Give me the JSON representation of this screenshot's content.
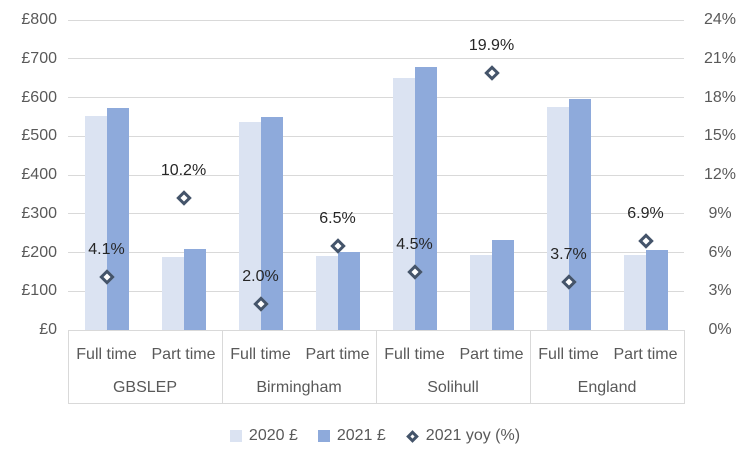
{
  "chart_data": {
    "type": "bar",
    "title": "",
    "groups": [
      "GBSLEP",
      "Birmingham",
      "Solihull",
      "England"
    ],
    "subcategories": [
      "Full time",
      "Part time"
    ],
    "series": [
      {
        "name": "2020 £",
        "values": [
          551,
          189,
          538,
          190,
          650,
          194,
          576,
          194
        ]
      },
      {
        "name": "2021 £",
        "values": [
          574,
          208,
          549,
          202,
          679,
          232,
          597,
          207
        ]
      }
    ],
    "marker_series": {
      "name": "2021 yoy (%)",
      "values": [
        4.1,
        10.2,
        2.0,
        6.5,
        4.5,
        19.9,
        3.7,
        6.9
      ],
      "labels": [
        "4.1%",
        "10.2%",
        "2.0%",
        "6.5%",
        "4.5%",
        "19.9%",
        "3.7%",
        "6.9%"
      ]
    },
    "left_axis": {
      "min": 0,
      "max": 800,
      "step": 100,
      "ticks": [
        "£0",
        "£100",
        "£200",
        "£300",
        "£400",
        "£500",
        "£600",
        "£700",
        "£800"
      ]
    },
    "right_axis": {
      "min": 0,
      "max": 24,
      "step": 3,
      "ticks": [
        "0%",
        "3%",
        "6%",
        "9%",
        "12%",
        "15%",
        "18%",
        "21%",
        "24%"
      ]
    },
    "grid": true,
    "legend_position": "bottom",
    "legend": [
      {
        "label": "2020 £",
        "swatch": "square-light"
      },
      {
        "label": "2021 £",
        "swatch": "square-dark"
      },
      {
        "label": "2021 yoy (%)",
        "swatch": "diamond"
      }
    ],
    "colors": {
      "bar_2020": "#dbe3f2",
      "bar_2021": "#8eaadb",
      "marker_border": "#44546a",
      "marker_fill": "#ffffff",
      "gridline": "#d9d9d9",
      "axis_line": "#d9d9d9",
      "axis_text": "#595959",
      "data_label_text": "#262626",
      "legend_text": "#595959",
      "background": "#ffffff"
    }
  }
}
